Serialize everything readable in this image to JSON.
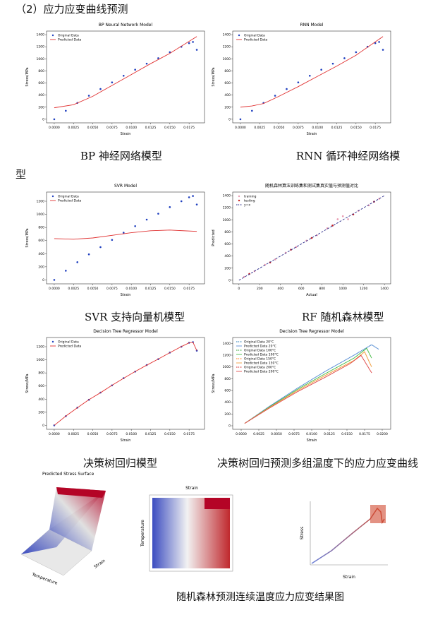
{
  "heading": "（2）应力应变曲线预测",
  "charts": [
    {
      "type": "line",
      "title": "BP Neural Network Model",
      "xlabel": "Strain",
      "ylabel": "Stress/MPa",
      "legend": "upper left",
      "xlim": [
        -0.001,
        0.0195
      ],
      "ylim": [
        -60,
        1460
      ],
      "xticks": [
        {
          "value": 0,
          "label": "0.0000"
        },
        {
          "value": 0.0025,
          "label": "0.0025"
        },
        {
          "value": 0.005,
          "label": "0.0050"
        },
        {
          "value": 0.0075,
          "label": "0.0075"
        },
        {
          "value": 0.01,
          "label": "0.0100"
        },
        {
          "value": 0.0125,
          "label": "0.0125"
        },
        {
          "value": 0.015,
          "label": "0.0150"
        },
        {
          "value": 0.0175,
          "label": "0.0175"
        }
      ],
      "yticks": [
        0,
        200,
        400,
        600,
        800,
        1000,
        1200,
        1400
      ],
      "series": [
        {
          "name": "Original Data",
          "color": "#1f3fbf",
          "style": "points",
          "x": [
            0,
            0.0015,
            0.003,
            0.0045,
            0.006,
            0.0075,
            0.009,
            0.0105,
            0.012,
            0.0135,
            0.015,
            0.0165,
            0.0175,
            0.018,
            0.0185
          ],
          "values": [
            0,
            140,
            270,
            390,
            500,
            610,
            720,
            820,
            920,
            1010,
            1110,
            1200,
            1260,
            1280,
            1150
          ]
        },
        {
          "name": "Predicted Data",
          "color": "#e03030",
          "style": "line",
          "x": [
            0,
            0.0025,
            0.005,
            0.0075,
            0.01,
            0.0125,
            0.015,
            0.0185
          ],
          "values": [
            190,
            240,
            380,
            560,
            740,
            920,
            1090,
            1370
          ]
        }
      ]
    },
    {
      "type": "line",
      "title": "RNN Model",
      "xlabel": "Strain",
      "ylabel": "Stress/MPa",
      "legend": "upper left",
      "xlim": [
        -0.001,
        0.0195
      ],
      "ylim": [
        -60,
        1460
      ],
      "xticks": [
        {
          "value": 0,
          "label": "0.0000"
        },
        {
          "value": 0.0025,
          "label": "0.0025"
        },
        {
          "value": 0.005,
          "label": "0.0050"
        },
        {
          "value": 0.0075,
          "label": "0.0075"
        },
        {
          "value": 0.01,
          "label": "0.0100"
        },
        {
          "value": 0.0125,
          "label": "0.0125"
        },
        {
          "value": 0.015,
          "label": "0.0150"
        },
        {
          "value": 0.0175,
          "label": "0.0175"
        }
      ],
      "yticks": [
        0,
        200,
        400,
        600,
        800,
        1000,
        1200,
        1400
      ],
      "series": [
        {
          "name": "Original Data",
          "color": "#1f3fbf",
          "style": "points",
          "x": [
            0,
            0.0015,
            0.003,
            0.0045,
            0.006,
            0.0075,
            0.009,
            0.0105,
            0.012,
            0.0135,
            0.015,
            0.0165,
            0.0175,
            0.018,
            0.0185
          ],
          "values": [
            0,
            140,
            270,
            390,
            500,
            610,
            720,
            820,
            920,
            1010,
            1110,
            1200,
            1260,
            1280,
            1150
          ]
        },
        {
          "name": "Predicted Data",
          "color": "#e03030",
          "style": "line",
          "x": [
            0,
            0.0015,
            0.003,
            0.005,
            0.0075,
            0.01,
            0.0125,
            0.015,
            0.0185
          ],
          "values": [
            200,
            220,
            260,
            380,
            540,
            710,
            880,
            1060,
            1370
          ]
        }
      ]
    },
    {
      "type": "line",
      "title": "SVR Model",
      "xlabel": "Strain",
      "ylabel": "Stress/MPa",
      "legend": "upper left",
      "xlim": [
        -0.001,
        0.0195
      ],
      "ylim": [
        -60,
        1340
      ],
      "xticks": [
        {
          "value": 0,
          "label": "0.0000"
        },
        {
          "value": 0.0025,
          "label": "0.0025"
        },
        {
          "value": 0.005,
          "label": "0.0050"
        },
        {
          "value": 0.0075,
          "label": "0.0075"
        },
        {
          "value": 0.01,
          "label": "0.0100"
        },
        {
          "value": 0.0125,
          "label": "0.0125"
        },
        {
          "value": 0.015,
          "label": "0.0150"
        },
        {
          "value": 0.0175,
          "label": "0.0175"
        }
      ],
      "yticks": [
        0,
        200,
        400,
        600,
        800,
        1000,
        1200
      ],
      "series": [
        {
          "name": "Original Data",
          "color": "#1f3fbf",
          "style": "points",
          "x": [
            0,
            0.0015,
            0.003,
            0.0045,
            0.006,
            0.0075,
            0.009,
            0.0105,
            0.012,
            0.0135,
            0.015,
            0.0165,
            0.0175,
            0.018,
            0.0185
          ],
          "values": [
            0,
            140,
            270,
            390,
            500,
            610,
            720,
            820,
            920,
            1010,
            1110,
            1200,
            1260,
            1280,
            1150
          ]
        },
        {
          "name": "Predicted Data",
          "color": "#e03030",
          "style": "line",
          "x": [
            0,
            0.0025,
            0.005,
            0.0075,
            0.01,
            0.0125,
            0.015,
            0.0185
          ],
          "values": [
            630,
            620,
            640,
            680,
            720,
            750,
            760,
            740
          ]
        }
      ]
    },
    {
      "type": "scatter",
      "title": "随机森林算法训练集和测试集真实值与预测值对比",
      "xlabel": "Actual",
      "ylabel": "Predicted",
      "legend": "upper left",
      "xlim": [
        -60,
        1460
      ],
      "ylim": [
        -60,
        1460
      ],
      "xticks": [
        0,
        200,
        400,
        600,
        800,
        1000,
        1200,
        1400
      ],
      "yticks": [
        0,
        200,
        400,
        600,
        800,
        1000,
        1200,
        1400
      ],
      "series": [
        {
          "name": "training",
          "color": "#e89ab0",
          "style": "points",
          "x": [
            50,
            150,
            250,
            350,
            450,
            550,
            650,
            750,
            850,
            950,
            1000,
            1050,
            1150,
            1250,
            1350
          ],
          "values": [
            55,
            150,
            255,
            345,
            455,
            550,
            655,
            745,
            860,
            1010,
            1060,
            1010,
            1150,
            1240,
            1350
          ]
        },
        {
          "name": "testing",
          "color": "#c81e1e",
          "style": "points",
          "x": [
            100,
            300,
            500,
            700,
            900,
            1100,
            1300
          ],
          "values": [
            105,
            295,
            505,
            700,
            905,
            1090,
            1300
          ]
        },
        {
          "name": "y=x",
          "color": "#2a2a8a",
          "style": "dashed",
          "x": [
            0,
            1400
          ],
          "values": [
            0,
            1400
          ]
        }
      ]
    },
    {
      "type": "line",
      "title": "Decision Tree Regressor Model",
      "xlabel": "Strain",
      "ylabel": "Stress/MPa",
      "legend": "upper left",
      "xlim": [
        -0.001,
        0.0195
      ],
      "ylim": [
        -60,
        1340
      ],
      "xticks": [
        {
          "value": 0,
          "label": "0.0000"
        },
        {
          "value": 0.0025,
          "label": "0.0025"
        },
        {
          "value": 0.005,
          "label": "0.0050"
        },
        {
          "value": 0.0075,
          "label": "0.0075"
        },
        {
          "value": 0.01,
          "label": "0.0100"
        },
        {
          "value": 0.0125,
          "label": "0.0125"
        },
        {
          "value": 0.015,
          "label": "0.0150"
        },
        {
          "value": 0.0175,
          "label": "0.0175"
        }
      ],
      "yticks": [
        0,
        200,
        400,
        600,
        800,
        1000,
        1200
      ],
      "series": [
        {
          "name": "Original Data",
          "color": "#1f3fbf",
          "style": "points",
          "x": [
            0,
            0.0015,
            0.003,
            0.0045,
            0.006,
            0.0075,
            0.009,
            0.0105,
            0.012,
            0.0135,
            0.015,
            0.0165,
            0.0175,
            0.018,
            0.0185
          ],
          "values": [
            0,
            140,
            270,
            390,
            500,
            610,
            720,
            820,
            920,
            1010,
            1110,
            1200,
            1260,
            1270,
            1140
          ]
        },
        {
          "name": "Predicted Data",
          "color": "#e03030",
          "style": "line",
          "x": [
            0,
            0.0015,
            0.003,
            0.0045,
            0.006,
            0.0075,
            0.009,
            0.0105,
            0.012,
            0.0135,
            0.015,
            0.0165,
            0.0175,
            0.018,
            0.0185
          ],
          "values": [
            0,
            142,
            268,
            392,
            498,
            612,
            718,
            822,
            918,
            1012,
            1108,
            1202,
            1258,
            1268,
            1140
          ]
        }
      ]
    },
    {
      "type": "line",
      "title": "Decision Tree Regressor Model",
      "xlabel": "Strain",
      "ylabel": "Stress/MPa",
      "legend": "upper left",
      "xlim": [
        -0.0012,
        0.0212
      ],
      "ylim": [
        -60,
        1500
      ],
      "xticks": [
        {
          "value": 0,
          "label": "0.0000"
        },
        {
          "value": 0.0025,
          "label": "0.0025"
        },
        {
          "value": 0.005,
          "label": "0.0050"
        },
        {
          "value": 0.0075,
          "label": "0.0075"
        },
        {
          "value": 0.01,
          "label": "0.0100"
        },
        {
          "value": 0.0125,
          "label": "0.0125"
        },
        {
          "value": 0.015,
          "label": "0.0150"
        },
        {
          "value": 0.0175,
          "label": "0.0175"
        },
        {
          "value": 0.02,
          "label": "0.0200"
        }
      ],
      "yticks": [
        0,
        200,
        400,
        600,
        800,
        1000,
        1200,
        1400
      ],
      "series": [
        {
          "name": "Original Data 20°C",
          "color": "#1f77b4",
          "style": "dotted",
          "x": [
            0.0005,
            0.004,
            0.008,
            0.012,
            0.016,
            0.0185,
            0.0195
          ],
          "values": [
            40,
            330,
            640,
            930,
            1200,
            1380,
            1300
          ]
        },
        {
          "name": "Predicted Data 20°C",
          "color": "#5b8fd6",
          "style": "line",
          "x": [
            0.0005,
            0.004,
            0.008,
            0.012,
            0.016,
            0.0185,
            0.0195
          ],
          "values": [
            40,
            330,
            640,
            930,
            1200,
            1375,
            1300
          ]
        },
        {
          "name": "Original Data 100°C",
          "color": "#2ca02c",
          "style": "dotted",
          "x": [
            0.0005,
            0.004,
            0.008,
            0.012,
            0.016,
            0.0178,
            0.0185
          ],
          "values": [
            40,
            320,
            620,
            890,
            1150,
            1320,
            1150
          ]
        },
        {
          "name": "Predicted Data 100°C",
          "color": "#4cbf4c",
          "style": "line",
          "x": [
            0.0005,
            0.004,
            0.008,
            0.012,
            0.016,
            0.0178,
            0.0185
          ],
          "values": [
            40,
            320,
            620,
            890,
            1150,
            1315,
            1150
          ]
        },
        {
          "name": "Original Data 150°C",
          "color": "#ff7f0e",
          "style": "dotted",
          "x": [
            0.0005,
            0.004,
            0.008,
            0.012,
            0.016,
            0.0175,
            0.0185
          ],
          "values": [
            40,
            310,
            600,
            860,
            1110,
            1260,
            1000
          ]
        },
        {
          "name": "Predicted Data 150°C",
          "color": "#f0a040",
          "style": "line",
          "x": [
            0.0005,
            0.004,
            0.008,
            0.012,
            0.016,
            0.0175,
            0.0185
          ],
          "values": [
            40,
            310,
            600,
            860,
            1110,
            1255,
            1000
          ]
        },
        {
          "name": "Original Data 200°C",
          "color": "#d62728",
          "style": "dotted",
          "x": [
            0.0005,
            0.004,
            0.008,
            0.012,
            0.0155,
            0.017,
            0.0185
          ],
          "values": [
            40,
            300,
            580,
            830,
            1060,
            1200,
            900
          ]
        },
        {
          "name": "Predicted Data 200°C",
          "color": "#e05050",
          "style": "line",
          "x": [
            0.0005,
            0.004,
            0.008,
            0.012,
            0.0155,
            0.017,
            0.0185
          ],
          "values": [
            40,
            300,
            580,
            830,
            1060,
            1195,
            900
          ]
        }
      ]
    }
  ],
  "captions": [
    "BP 神经网络模型",
    "RNN 循环神经网络模型",
    "SVR 支持向量机模型",
    "RF 随机森林模型",
    "决策树回归模型",
    "决策树回归预测多组温度下的应力应变曲线"
  ],
  "figures_3d": {
    "surface": {
      "title": "Predicted Stress Surface",
      "xlabel": "Temperature",
      "ylabel": "Strain"
    },
    "heatmap": {
      "xlabel": "Strain",
      "ylabel": "Temperature"
    },
    "line3d": {
      "zlabel": "Stress",
      "xlabel": "Strain"
    }
  },
  "bottom_caption": "随机森林预测连续温度应力应变结果图"
}
